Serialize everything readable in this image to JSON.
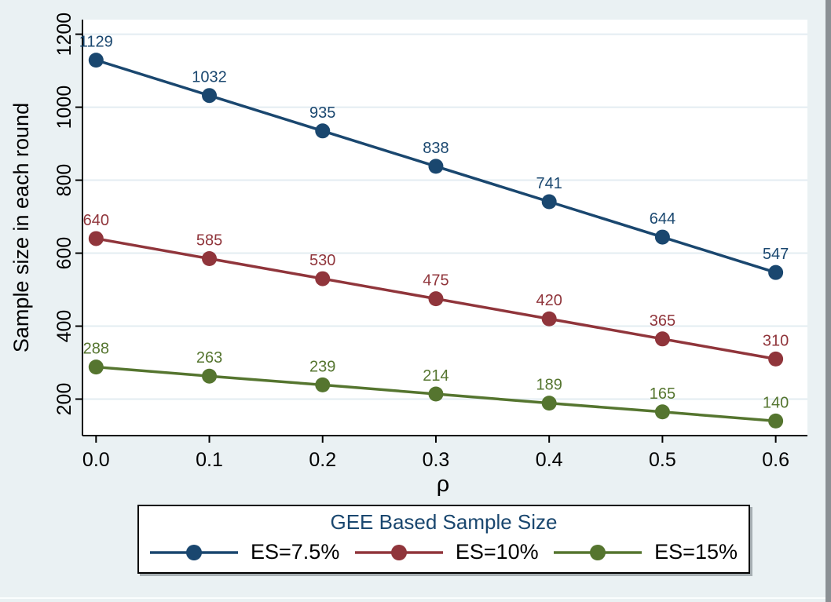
{
  "window": {
    "background_color": "#eaf1f3",
    "plot_background_color": "#ffffff",
    "grid_color": "#e3ecf2",
    "axis_color": "#000000",
    "right_edge_color": "#8b9094"
  },
  "chart_data": {
    "type": "line",
    "title": "",
    "xlabel": "ρ",
    "ylabel": "Sample size in each round",
    "x": [
      0,
      0.1,
      0.2,
      0.3,
      0.4,
      0.5,
      0.6
    ],
    "x_tick_labels": [
      "0.0",
      "0.1",
      "0.2",
      "0.3",
      "0.4",
      "0.5",
      "0.6"
    ],
    "y_ticks": [
      200,
      400,
      600,
      800,
      1000,
      1200
    ],
    "y_tick_labels": [
      "200",
      "400",
      "600",
      "800",
      "1000",
      "1200"
    ],
    "xlim": [
      -0.012,
      0.628
    ],
    "ylim": [
      100,
      1240
    ],
    "grid": "horizontal",
    "legend_position": "bottom",
    "legend_title": "GEE Based Sample Size",
    "legend_title_color": "#1a476f",
    "series": [
      {
        "name": "ES=7.5%",
        "color": "#1a476f",
        "values": [
          1129,
          1032,
          935,
          838,
          741,
          644,
          547
        ]
      },
      {
        "name": "ES=10%",
        "color": "#90353b",
        "values": [
          640,
          585,
          530,
          475,
          420,
          365,
          310
        ]
      },
      {
        "name": "ES=15%",
        "color": "#55752f",
        "values": [
          288,
          263,
          239,
          214,
          189,
          165,
          140
        ]
      }
    ]
  }
}
